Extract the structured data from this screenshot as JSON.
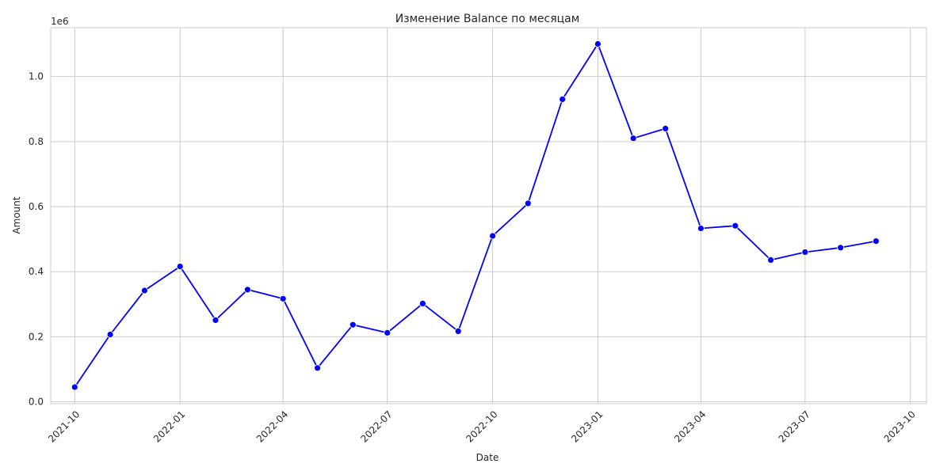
{
  "chart_data": {
    "type": "line",
    "title": "Изменение Balance по месяцам",
    "xlabel": "Date",
    "ylabel": "Amount",
    "y_offset_label": "1e6",
    "ylim": [
      -6000,
      1150000
    ],
    "xlim": [
      "2021-09-10",
      "2023-10-15"
    ],
    "grid": true,
    "line_color": "#0000ff",
    "marker_color": "#0000ff",
    "x_ticks": [
      "2021-10-01",
      "2022-01-01",
      "2022-04-01",
      "2022-07-01",
      "2022-10-01",
      "2023-01-01",
      "2023-04-01",
      "2023-07-01",
      "2023-10-01"
    ],
    "x_tick_labels": [
      "2021-10",
      "2022-01",
      "2022-04",
      "2022-07",
      "2022-10",
      "2023-01",
      "2023-04",
      "2023-07",
      "2023-10"
    ],
    "y_ticks": [
      0,
      200000,
      400000,
      600000,
      800000,
      1000000
    ],
    "y_tick_labels": [
      "0.0",
      "0.2",
      "0.4",
      "0.6",
      "0.8",
      "1.0"
    ],
    "series": [
      {
        "x": [
          "2021-10-01",
          "2021-11-01",
          "2021-12-01",
          "2022-01-01",
          "2022-02-01",
          "2022-03-01",
          "2022-04-01",
          "2022-05-01",
          "2022-06-01",
          "2022-07-01",
          "2022-08-01",
          "2022-09-01",
          "2022-10-01",
          "2022-11-01",
          "2022-12-01",
          "2023-01-01",
          "2023-02-01",
          "2023-03-01",
          "2023-04-01",
          "2023-05-01",
          "2023-06-01",
          "2023-07-01",
          "2023-08-01",
          "2023-09-01"
        ],
        "values": [
          45000,
          207000,
          342000,
          416000,
          251000,
          345000,
          317000,
          104000,
          237000,
          212000,
          302000,
          217000,
          510000,
          610000,
          930000,
          1100000,
          810000,
          840000,
          533000,
          541000,
          436000,
          460000,
          474000,
          494000
        ]
      }
    ]
  }
}
